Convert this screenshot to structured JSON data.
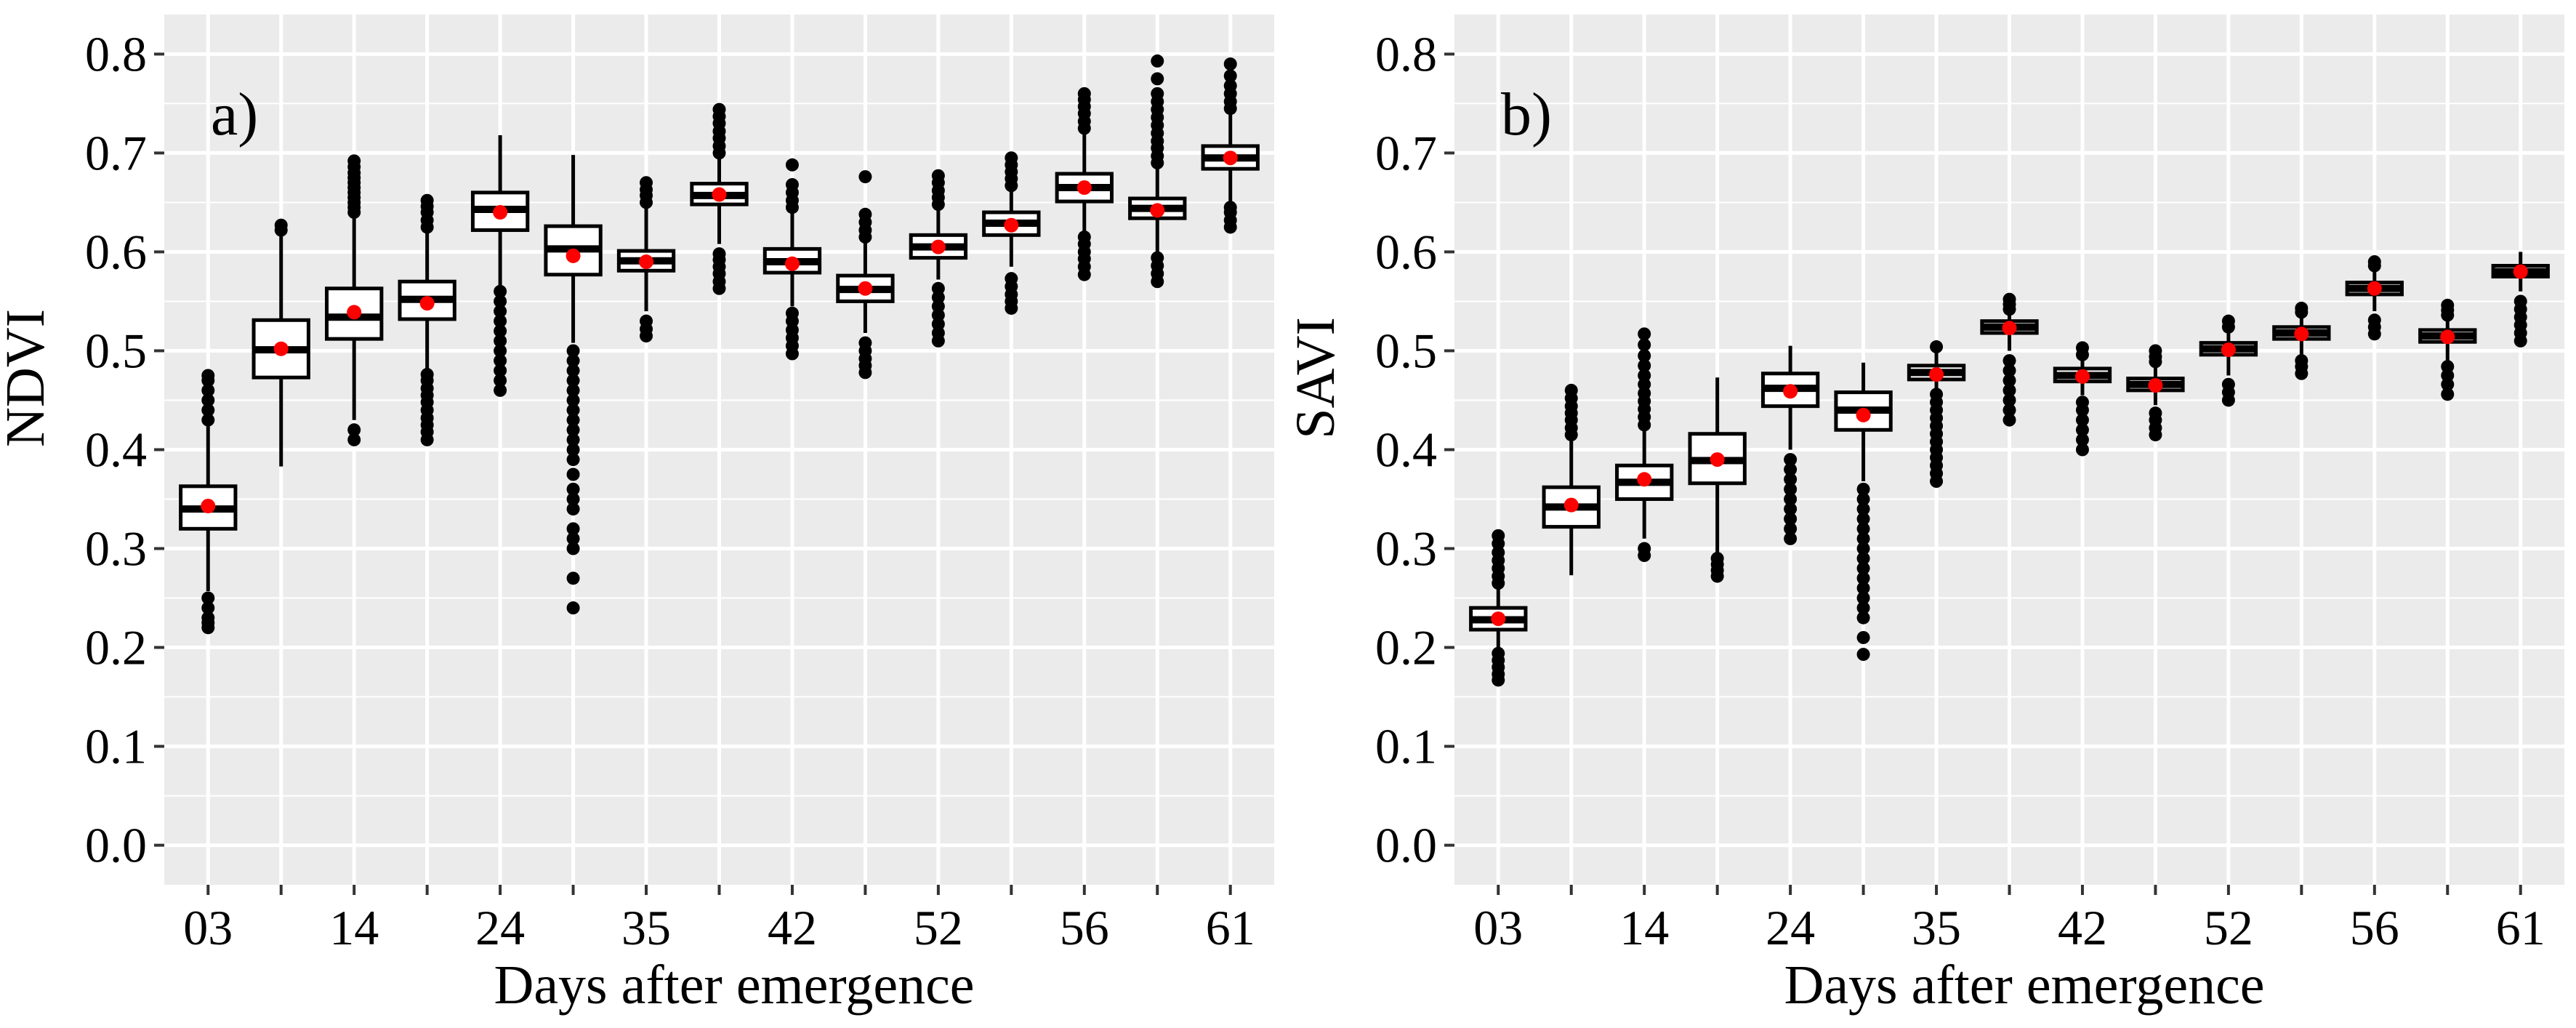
{
  "chart_data": [
    {
      "panel": "a)",
      "type": "box",
      "xlabel": "Days after emergence",
      "ylabel": "NDVI",
      "ylim": [
        -0.04,
        0.84
      ],
      "yticks": [
        0.0,
        0.1,
        0.2,
        0.3,
        0.4,
        0.5,
        0.6,
        0.7,
        0.8
      ],
      "ytick_labels": [
        "0.0",
        "0.1",
        "0.2",
        "0.3",
        "0.4",
        "0.5",
        "0.6",
        "0.7",
        "0.8"
      ],
      "xtick_labels": [
        "03",
        "",
        "14",
        "",
        "24",
        "",
        "35",
        "",
        "42",
        "",
        "52",
        "",
        "56",
        "",
        "61"
      ],
      "boxes": [
        {
          "q1": 0.32,
          "median": 0.34,
          "q3": 0.363,
          "wlo": 0.257,
          "whi": 0.425,
          "mean": 0.343,
          "outliers": [
            0.22,
            0.225,
            0.23,
            0.24,
            0.25,
            0.43,
            0.44,
            0.45,
            0.46,
            0.47,
            0.475
          ]
        },
        {
          "q1": 0.473,
          "median": 0.501,
          "q3": 0.531,
          "wlo": 0.383,
          "whi": 0.618,
          "mean": 0.502,
          "outliers": [
            0.622,
            0.627
          ]
        },
        {
          "q1": 0.512,
          "median": 0.534,
          "q3": 0.563,
          "wlo": 0.43,
          "whi": 0.638,
          "mean": 0.539,
          "outliers": [
            0.41,
            0.42,
            0.64,
            0.645,
            0.65,
            0.655,
            0.66,
            0.665,
            0.67,
            0.675,
            0.68,
            0.686,
            0.692
          ]
        },
        {
          "q1": 0.532,
          "median": 0.552,
          "q3": 0.57,
          "wlo": 0.482,
          "whi": 0.62,
          "mean": 0.548,
          "outliers": [
            0.41,
            0.418,
            0.425,
            0.432,
            0.44,
            0.448,
            0.455,
            0.462,
            0.47,
            0.476,
            0.625,
            0.632,
            0.64,
            0.646,
            0.652
          ]
        },
        {
          "q1": 0.622,
          "median": 0.643,
          "q3": 0.66,
          "wlo": 0.565,
          "whi": 0.718,
          "mean": 0.64,
          "outliers": [
            0.46,
            0.47,
            0.48,
            0.49,
            0.5,
            0.51,
            0.52,
            0.53,
            0.54,
            0.55,
            0.56
          ]
        },
        {
          "q1": 0.577,
          "median": 0.603,
          "q3": 0.626,
          "wlo": 0.508,
          "whi": 0.698,
          "mean": 0.596,
          "outliers": [
            0.24,
            0.27,
            0.3,
            0.31,
            0.32,
            0.34,
            0.35,
            0.36,
            0.375,
            0.39,
            0.4,
            0.41,
            0.42,
            0.43,
            0.44,
            0.45,
            0.46,
            0.47,
            0.48,
            0.49,
            0.5
          ]
        },
        {
          "q1": 0.581,
          "median": 0.591,
          "q3": 0.601,
          "wlo": 0.54,
          "whi": 0.645,
          "mean": 0.59,
          "outliers": [
            0.515,
            0.522,
            0.53,
            0.65,
            0.657,
            0.663,
            0.67
          ]
        },
        {
          "q1": 0.648,
          "median": 0.657,
          "q3": 0.669,
          "wlo": 0.608,
          "whi": 0.696,
          "mean": 0.658,
          "outliers": [
            0.563,
            0.57,
            0.578,
            0.585,
            0.592,
            0.598,
            0.7,
            0.707,
            0.715,
            0.722,
            0.73,
            0.737,
            0.744
          ]
        },
        {
          "q1": 0.579,
          "median": 0.59,
          "q3": 0.603,
          "wlo": 0.545,
          "whi": 0.64,
          "mean": 0.588,
          "outliers": [
            0.497,
            0.505,
            0.513,
            0.521,
            0.53,
            0.538,
            0.645,
            0.652,
            0.66,
            0.668,
            0.688
          ]
        },
        {
          "q1": 0.55,
          "median": 0.562,
          "q3": 0.576,
          "wlo": 0.518,
          "whi": 0.61,
          "mean": 0.563,
          "outliers": [
            0.478,
            0.485,
            0.492,
            0.5,
            0.508,
            0.615,
            0.622,
            0.63,
            0.638,
            0.676
          ]
        },
        {
          "q1": 0.594,
          "median": 0.605,
          "q3": 0.617,
          "wlo": 0.572,
          "whi": 0.643,
          "mean": 0.605,
          "outliers": [
            0.51,
            0.518,
            0.527,
            0.536,
            0.545,
            0.554,
            0.563,
            0.648,
            0.655,
            0.662,
            0.67,
            0.677
          ]
        },
        {
          "q1": 0.617,
          "median": 0.629,
          "q3": 0.64,
          "wlo": 0.585,
          "whi": 0.662,
          "mean": 0.627,
          "outliers": [
            0.543,
            0.55,
            0.557,
            0.565,
            0.573,
            0.667,
            0.674,
            0.681,
            0.688,
            0.695
          ]
        },
        {
          "q1": 0.651,
          "median": 0.665,
          "q3": 0.679,
          "wlo": 0.62,
          "whi": 0.72,
          "mean": 0.665,
          "outliers": [
            0.577,
            0.585,
            0.593,
            0.6,
            0.608,
            0.615,
            0.725,
            0.732,
            0.74,
            0.747,
            0.754,
            0.76
          ]
        },
        {
          "q1": 0.634,
          "median": 0.644,
          "q3": 0.654,
          "wlo": 0.6,
          "whi": 0.685,
          "mean": 0.642,
          "outliers": [
            0.57,
            0.578,
            0.586,
            0.594,
            0.69,
            0.697,
            0.705,
            0.712,
            0.72,
            0.728,
            0.736,
            0.744,
            0.752,
            0.76,
            0.775,
            0.793
          ]
        },
        {
          "q1": 0.684,
          "median": 0.695,
          "q3": 0.707,
          "wlo": 0.65,
          "whi": 0.74,
          "mean": 0.695,
          "outliers": [
            0.625,
            0.632,
            0.64,
            0.645,
            0.745,
            0.752,
            0.76,
            0.768,
            0.778,
            0.79
          ]
        }
      ]
    },
    {
      "panel": "b)",
      "type": "box",
      "xlabel": "Days after emergence",
      "ylabel": "SAVI",
      "ylim": [
        -0.04,
        0.84
      ],
      "yticks": [
        0.0,
        0.1,
        0.2,
        0.3,
        0.4,
        0.5,
        0.6,
        0.7,
        0.8
      ],
      "ytick_labels": [
        "0.0",
        "0.1",
        "0.2",
        "0.3",
        "0.4",
        "0.5",
        "0.6",
        "0.7",
        "0.8"
      ],
      "xtick_labels": [
        "03",
        "",
        "14",
        "",
        "24",
        "",
        "35",
        "",
        "42",
        "",
        "52",
        "",
        "56",
        "",
        "61"
      ],
      "boxes": [
        {
          "q1": 0.218,
          "median": 0.228,
          "q3": 0.24,
          "wlo": 0.2,
          "whi": 0.26,
          "mean": 0.229,
          "outliers": [
            0.167,
            0.173,
            0.18,
            0.187,
            0.194,
            0.265,
            0.272,
            0.28,
            0.288,
            0.296,
            0.305,
            0.313
          ]
        },
        {
          "q1": 0.322,
          "median": 0.342,
          "q3": 0.362,
          "wlo": 0.273,
          "whi": 0.41,
          "mean": 0.344,
          "outliers": [
            0.415,
            0.422,
            0.43,
            0.437,
            0.444,
            0.452,
            0.46
          ]
        },
        {
          "q1": 0.35,
          "median": 0.367,
          "q3": 0.384,
          "wlo": 0.31,
          "whi": 0.42,
          "mean": 0.37,
          "outliers": [
            0.293,
            0.3,
            0.425,
            0.433,
            0.441,
            0.449,
            0.457,
            0.466,
            0.475,
            0.485,
            0.495,
            0.506,
            0.517
          ]
        },
        {
          "q1": 0.366,
          "median": 0.389,
          "q3": 0.416,
          "wlo": 0.295,
          "whi": 0.473,
          "mean": 0.39,
          "outliers": [
            0.272,
            0.278,
            0.284,
            0.29
          ]
        },
        {
          "q1": 0.444,
          "median": 0.462,
          "q3": 0.477,
          "wlo": 0.4,
          "whi": 0.505,
          "mean": 0.459,
          "outliers": [
            0.31,
            0.32,
            0.33,
            0.34,
            0.35,
            0.36,
            0.37,
            0.38,
            0.39
          ]
        },
        {
          "q1": 0.42,
          "median": 0.44,
          "q3": 0.458,
          "wlo": 0.368,
          "whi": 0.488,
          "mean": 0.435,
          "outliers": [
            0.193,
            0.21,
            0.23,
            0.24,
            0.25,
            0.26,
            0.27,
            0.28,
            0.29,
            0.3,
            0.31,
            0.32,
            0.33,
            0.34,
            0.35,
            0.36
          ]
        },
        {
          "q1": 0.471,
          "median": 0.478,
          "q3": 0.485,
          "wlo": 0.46,
          "whi": 0.5,
          "mean": 0.476,
          "outliers": [
            0.368,
            0.376,
            0.384,
            0.392,
            0.4,
            0.408,
            0.416,
            0.424,
            0.432,
            0.44,
            0.448,
            0.456,
            0.504
          ]
        },
        {
          "q1": 0.518,
          "median": 0.524,
          "q3": 0.53,
          "wlo": 0.5,
          "whi": 0.538,
          "mean": 0.523,
          "outliers": [
            0.43,
            0.44,
            0.45,
            0.46,
            0.47,
            0.48,
            0.49,
            0.542,
            0.547,
            0.552
          ]
        },
        {
          "q1": 0.469,
          "median": 0.475,
          "q3": 0.482,
          "wlo": 0.455,
          "whi": 0.492,
          "mean": 0.474,
          "outliers": [
            0.4,
            0.41,
            0.42,
            0.43,
            0.44,
            0.448,
            0.496,
            0.503
          ]
        },
        {
          "q1": 0.46,
          "median": 0.466,
          "q3": 0.472,
          "wlo": 0.445,
          "whi": 0.485,
          "mean": 0.465,
          "outliers": [
            0.415,
            0.422,
            0.43,
            0.437,
            0.489,
            0.494,
            0.5
          ]
        },
        {
          "q1": 0.496,
          "median": 0.502,
          "q3": 0.508,
          "wlo": 0.475,
          "whi": 0.52,
          "mean": 0.501,
          "outliers": [
            0.45,
            0.458,
            0.466,
            0.524,
            0.53
          ]
        },
        {
          "q1": 0.512,
          "median": 0.518,
          "q3": 0.524,
          "wlo": 0.495,
          "whi": 0.535,
          "mean": 0.517,
          "outliers": [
            0.477,
            0.484,
            0.49,
            0.539,
            0.543
          ]
        },
        {
          "q1": 0.557,
          "median": 0.563,
          "q3": 0.569,
          "wlo": 0.54,
          "whi": 0.582,
          "mean": 0.563,
          "outliers": [
            0.517,
            0.524,
            0.531,
            0.586,
            0.59
          ]
        },
        {
          "q1": 0.509,
          "median": 0.515,
          "q3": 0.521,
          "wlo": 0.49,
          "whi": 0.532,
          "mean": 0.514,
          "outliers": [
            0.456,
            0.466,
            0.475,
            0.484,
            0.536,
            0.541,
            0.546
          ]
        },
        {
          "q1": 0.575,
          "median": 0.58,
          "q3": 0.586,
          "wlo": 0.56,
          "whi": 0.6,
          "mean": 0.58,
          "outliers": [
            0.51,
            0.518,
            0.526,
            0.534,
            0.542,
            0.55
          ]
        }
      ]
    }
  ],
  "colors": {
    "panel_background": "#ebebeb",
    "grid_major": "#ffffff",
    "box_fill": "#ffffff",
    "box_stroke": "#000000",
    "outlier": "#000000",
    "mean_marker": "#ff0000",
    "text": "#000000"
  }
}
